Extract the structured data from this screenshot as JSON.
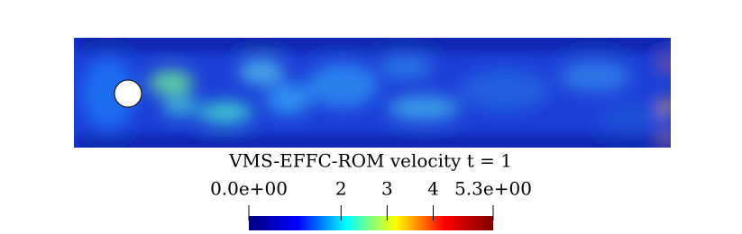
{
  "chart_data": {
    "type": "colorbar",
    "title": "VMS-EFFC-ROM velocity t = 1",
    "zlim": [
      0,
      5.3
    ],
    "zticks": [
      {
        "value": 0,
        "label": "0.0e+00"
      },
      2,
      3,
      4,
      {
        "value": 5.3,
        "label": "5.3e+00"
      }
    ],
    "colors": [
      "#00007f",
      "#0000ff",
      "#00ffff",
      "#ffff00",
      "#ff0000",
      "#7f0000"
    ]
  }
}
